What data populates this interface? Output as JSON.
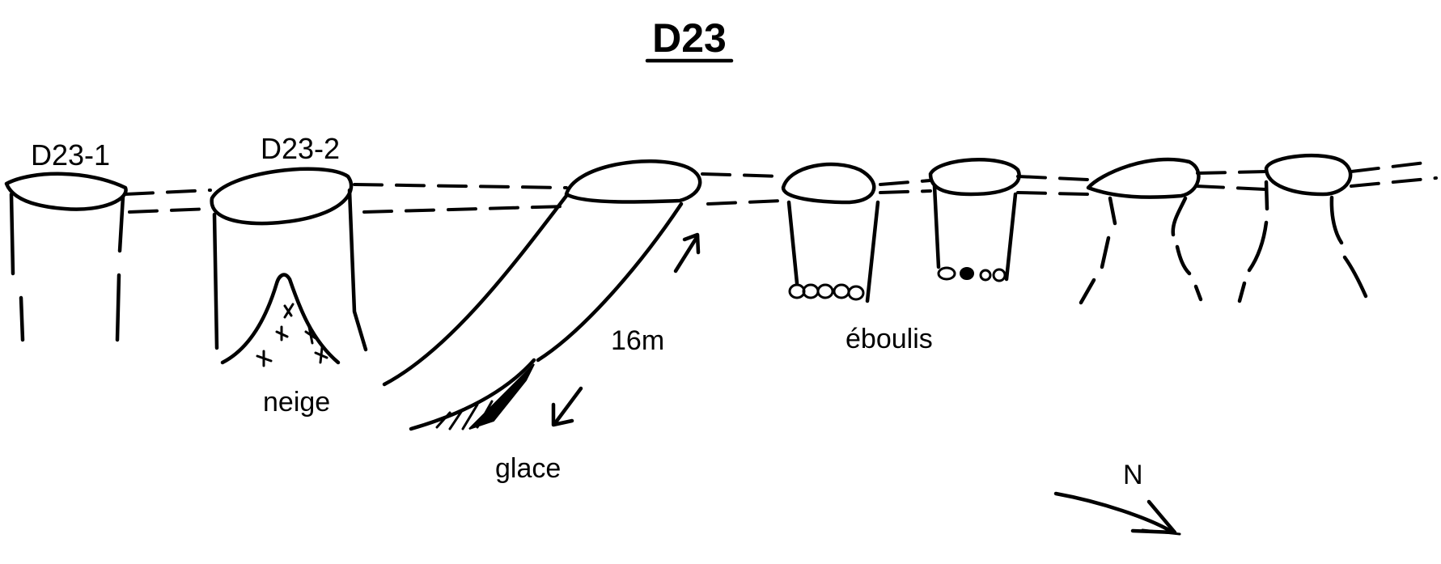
{
  "title": "D23",
  "labels": {
    "shaft1": "D23-1",
    "shaft2": "D23-2",
    "depth": "16m",
    "scree": "éboulis",
    "snow": "neige",
    "ice": "glace",
    "north": "N"
  },
  "ink_color": "#000000",
  "background_color": "#ffffff"
}
